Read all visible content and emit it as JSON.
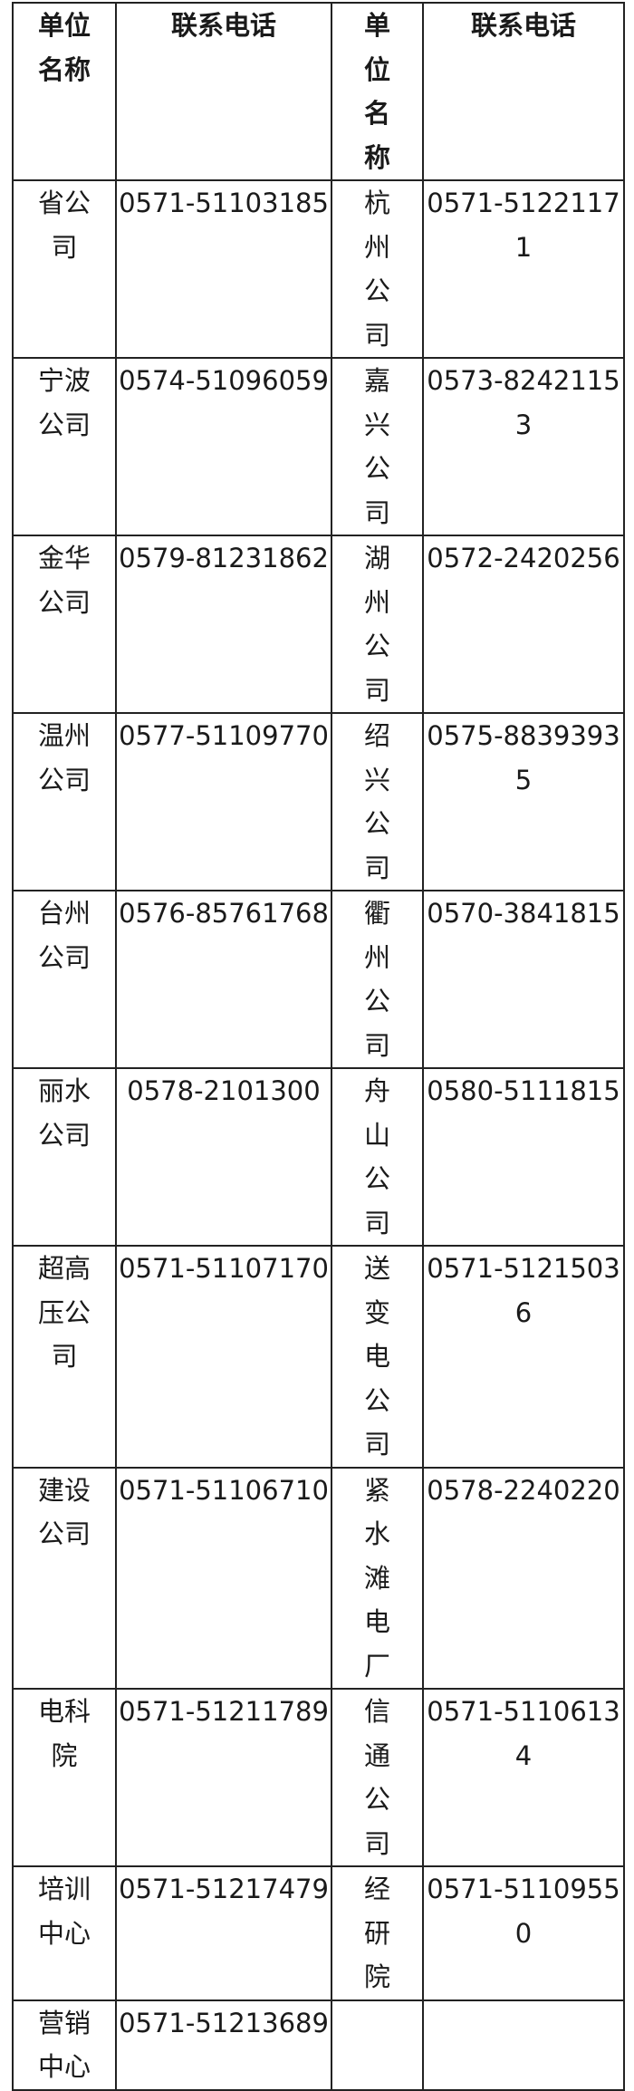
{
  "header": {
    "unit": "单位名称",
    "phone": "联系电话"
  },
  "rows": [
    [
      {
        "name": "省公司",
        "phone": "0571-51103185"
      },
      {
        "name": "杭州公司",
        "phone": "0571-51221171"
      }
    ],
    [
      {
        "name": "宁波公司",
        "phone": "0574-51096059"
      },
      {
        "name": "嘉兴公司",
        "phone": "0573-82421153"
      }
    ],
    [
      {
        "name": "金华公司",
        "phone": "0579-81231862"
      },
      {
        "name": "湖州公司",
        "phone": "0572-2420256"
      }
    ],
    [
      {
        "name": "温州公司",
        "phone": "0577-51109770"
      },
      {
        "name": "绍兴公司",
        "phone": "0575-88393935"
      }
    ],
    [
      {
        "name": "台州公司",
        "phone": "0576-85761768"
      },
      {
        "name": "衢州公司",
        "phone": "0570-3841815"
      }
    ],
    [
      {
        "name": "丽水公司",
        "phone": "0578-2101300"
      },
      {
        "name": "舟山公司",
        "phone": "0580-5111815"
      }
    ],
    [
      {
        "name": "超高压公司",
        "phone": "0571-51107170"
      },
      {
        "name": "送变电公司",
        "phone": "0571-51215036"
      }
    ],
    [
      {
        "name": "建设公司",
        "phone": "0571-51106710"
      },
      {
        "name": "紧水滩电厂",
        "phone": "0578-2240220"
      }
    ],
    [
      {
        "name": "电科院",
        "phone": "0571-51211789"
      },
      {
        "name": "信通公司",
        "phone": "0571-51106134"
      }
    ],
    [
      {
        "name": "培训中心",
        "phone": "0571-51217479"
      },
      {
        "name": "经研院",
        "phone": "0571-51109550"
      }
    ],
    [
      {
        "name": "营销中心",
        "phone": "0571-51213689"
      },
      {
        "name": "",
        "phone": ""
      }
    ]
  ]
}
